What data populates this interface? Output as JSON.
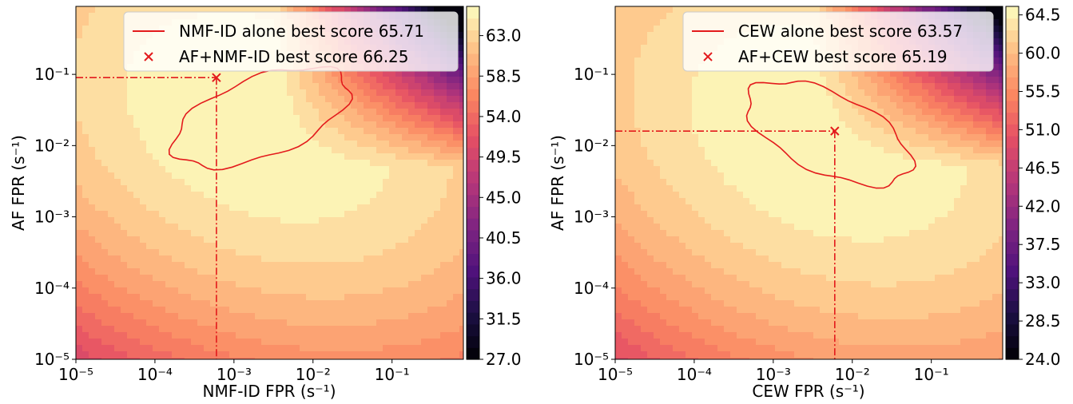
{
  "chart_data": [
    {
      "type": "contour",
      "xlabel": "NMF-ID FPR (s⁻¹)",
      "ylabel": "AF FPR (s⁻¹)",
      "xscale": "log",
      "yscale": "log",
      "xlim": [
        1e-05,
        0.8
      ],
      "ylim": [
        1e-05,
        0.9
      ],
      "x_ticks": [
        "10⁻⁵",
        "10⁻⁴",
        "10⁻³",
        "10⁻²",
        "10⁻¹"
      ],
      "y_ticks": [
        "10⁻⁵",
        "10⁻⁴",
        "10⁻³",
        "10⁻²",
        "10⁻¹"
      ],
      "colorbar": {
        "colormap": "magma",
        "min": 27.0,
        "max": 66.25,
        "ticks": [
          "27.0",
          "31.5",
          "36.0",
          "40.5",
          "45.0",
          "49.5",
          "54.0",
          "58.5",
          "63.0"
        ]
      },
      "legend": [
        {
          "label": "NMF-ID alone best score 65.71",
          "marker": "line",
          "color": "#e31a1c"
        },
        {
          "label": "AF+NMF-ID best score 66.25",
          "marker": "x",
          "color": "#e31a1c"
        }
      ],
      "best_point": {
        "x": 0.0006,
        "y": 0.09
      },
      "peak": {
        "x": 0.0022,
        "y": 0.025
      },
      "alone_contour_level": 65.71
    },
    {
      "type": "contour",
      "xlabel": "CEW FPR (s⁻¹)",
      "ylabel": "AF FPR (s⁻¹)",
      "xscale": "log",
      "yscale": "log",
      "xlim": [
        1e-05,
        0.8
      ],
      "ylim": [
        1e-05,
        0.9
      ],
      "x_ticks": [
        "10⁻⁵",
        "10⁻⁴",
        "10⁻³",
        "10⁻²",
        "10⁻¹"
      ],
      "y_ticks": [
        "10⁻⁵",
        "10⁻⁴",
        "10⁻³",
        "10⁻²",
        "10⁻¹"
      ],
      "colorbar": {
        "colormap": "magma",
        "min": 24.0,
        "max": 65.5,
        "ticks": [
          "24.0",
          "28.5",
          "33.0",
          "37.5",
          "42.0",
          "46.5",
          "51.0",
          "55.5",
          "60.0",
          "64.5"
        ]
      },
      "legend": [
        {
          "label": "CEW alone best score 63.57",
          "marker": "line",
          "color": "#e31a1c"
        },
        {
          "label": "AF+CEW best score 65.19",
          "marker": "x",
          "color": "#e31a1c"
        }
      ],
      "best_point": {
        "x": 0.006,
        "y": 0.016
      },
      "peak": {
        "x": 0.005,
        "y": 0.015
      },
      "alone_contour_level": 63.57
    }
  ]
}
